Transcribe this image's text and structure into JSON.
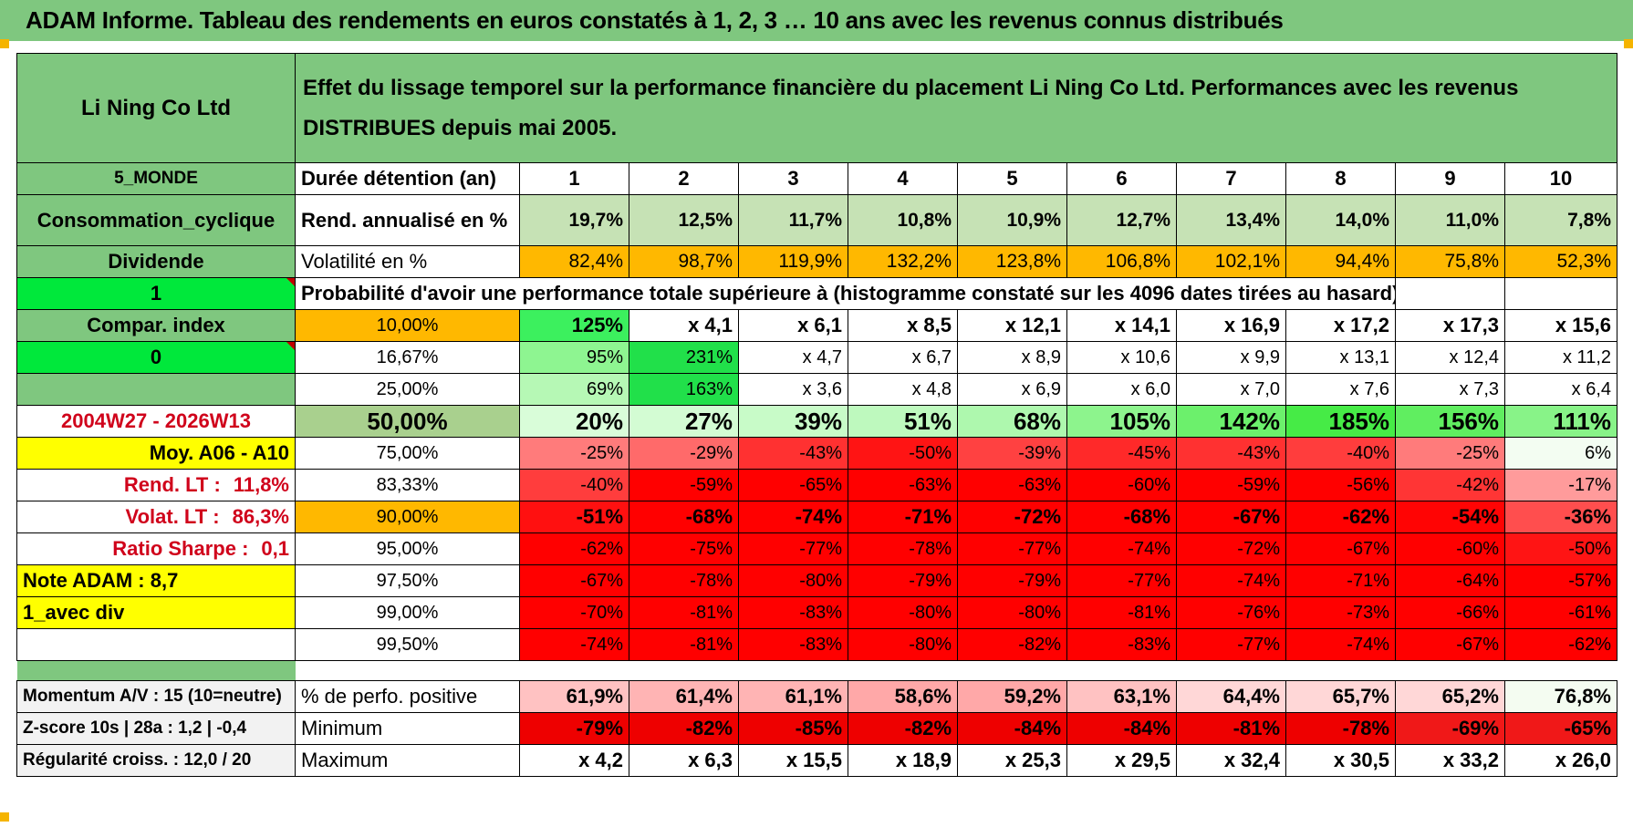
{
  "banner": {
    "title": "ADAM Informe. Tableau des rendements en euros constatés à 1, 2, 3 … 10 ans avec les revenus connus distribués"
  },
  "colors": {
    "header_green": "#7fc77f",
    "bright_green": "#00e83b",
    "orange": "#ffb800",
    "yellow": "#ffff00",
    "red_text": "#d0021b"
  },
  "header": {
    "company": "Li Ning Co Ltd",
    "description": "Effet du lissage temporel sur la performance financière du placement Li Ning Co Ltd. Performances avec les revenus DISTRIBUES depuis mai 2005."
  },
  "rows": {
    "duration": {
      "left": "5_MONDE",
      "label": "Durée détention (an)",
      "values": [
        "1",
        "2",
        "3",
        "4",
        "5",
        "6",
        "7",
        "8",
        "9",
        "10"
      ]
    },
    "annualized": {
      "left": "Consommation_cyclique",
      "label": "Rend. annualisé en %",
      "values": [
        "19,7%",
        "12,5%",
        "11,7%",
        "10,8%",
        "10,9%",
        "12,7%",
        "13,4%",
        "14,0%",
        "11,0%",
        "7,8%"
      ]
    },
    "volatility": {
      "left": "Dividende",
      "label": "Volatilité en %",
      "values": [
        "82,4%",
        "98,7%",
        "119,9%",
        "132,2%",
        "123,8%",
        "106,8%",
        "102,1%",
        "94,4%",
        "75,8%",
        "52,3%"
      ]
    },
    "probability": {
      "left": "1",
      "text": "Probabilité d'avoir une performance totale supérieure à (histogramme constaté sur les 4096 dates tirées au hasard)"
    }
  },
  "percentiles": [
    {
      "left": "Compar. index",
      "pct": "10,00%",
      "values": [
        "125%",
        "x 4,1",
        "x 6,1",
        "x 8,5",
        "x 12,1",
        "x 14,1",
        "x 16,9",
        "x 17,2",
        "x 17,3",
        "x 15,6"
      ]
    },
    {
      "left": "0",
      "pct": "16,67%",
      "values": [
        "95%",
        "231%",
        "x 4,7",
        "x 6,7",
        "x 8,9",
        "x 10,6",
        "x 9,9",
        "x 13,1",
        "x 12,4",
        "x 11,2"
      ]
    },
    {
      "left": "",
      "pct": "25,00%",
      "values": [
        "69%",
        "163%",
        "x 3,6",
        "x 4,8",
        "x 6,9",
        "x 6,0",
        "x 7,0",
        "x 7,6",
        "x 7,3",
        "x 6,4"
      ]
    },
    {
      "left": "2004W27 - 2026W13",
      "pct": "50,00%",
      "values": [
        "20%",
        "27%",
        "39%",
        "51%",
        "68%",
        "105%",
        "142%",
        "185%",
        "156%",
        "111%"
      ]
    },
    {
      "left": "Moy. A06 - A10",
      "pct": "75,00%",
      "values": [
        "-25%",
        "-29%",
        "-43%",
        "-50%",
        "-39%",
        "-45%",
        "-43%",
        "-40%",
        "-25%",
        "6%"
      ]
    },
    {
      "left_label": "Rend. LT :",
      "left_value": "11,8%",
      "pct": "83,33%",
      "values": [
        "-40%",
        "-59%",
        "-65%",
        "-63%",
        "-63%",
        "-60%",
        "-59%",
        "-56%",
        "-42%",
        "-17%"
      ]
    },
    {
      "left_label": "Volat. LT :",
      "left_value": "86,3%",
      "pct": "90,00%",
      "values": [
        "-51%",
        "-68%",
        "-74%",
        "-71%",
        "-72%",
        "-68%",
        "-67%",
        "-62%",
        "-54%",
        "-36%"
      ]
    },
    {
      "left_label": "Ratio Sharpe :",
      "left_value": "0,1",
      "pct": "95,00%",
      "values": [
        "-62%",
        "-75%",
        "-77%",
        "-78%",
        "-77%",
        "-74%",
        "-72%",
        "-67%",
        "-60%",
        "-50%"
      ]
    },
    {
      "left": "Note ADAM : 8,7",
      "pct": "97,50%",
      "values": [
        "-67%",
        "-78%",
        "-80%",
        "-79%",
        "-79%",
        "-77%",
        "-74%",
        "-71%",
        "-64%",
        "-57%"
      ]
    },
    {
      "left": "1_avec div",
      "pct": "99,00%",
      "values": [
        "-70%",
        "-81%",
        "-83%",
        "-80%",
        "-80%",
        "-81%",
        "-76%",
        "-73%",
        "-66%",
        "-61%"
      ]
    },
    {
      "left": "",
      "pct": "99,50%",
      "values": [
        "-74%",
        "-81%",
        "-83%",
        "-80%",
        "-82%",
        "-83%",
        "-77%",
        "-74%",
        "-67%",
        "-62%"
      ]
    }
  ],
  "footer": [
    {
      "left": "Momentum A/V : 15 (10=neutre)",
      "label": "% de perfo. positive",
      "values": [
        "61,9%",
        "61,4%",
        "61,1%",
        "58,6%",
        "59,2%",
        "63,1%",
        "64,4%",
        "65,7%",
        "65,2%",
        "76,8%"
      ]
    },
    {
      "left": "Z-score 10s | 28a : 1,2 | -0,4",
      "label": "Minimum",
      "values": [
        "-79%",
        "-82%",
        "-85%",
        "-82%",
        "-84%",
        "-84%",
        "-81%",
        "-78%",
        "-69%",
        "-65%"
      ]
    },
    {
      "left": "Régularité croiss. : 12,0 / 20",
      "label": "Maximum",
      "values": [
        "x 4,2",
        "x 6,3",
        "x 15,5",
        "x 18,9",
        "x 25,3",
        "x 29,5",
        "x 32,4",
        "x 30,5",
        "x 33,2",
        "x 26,0"
      ]
    }
  ]
}
